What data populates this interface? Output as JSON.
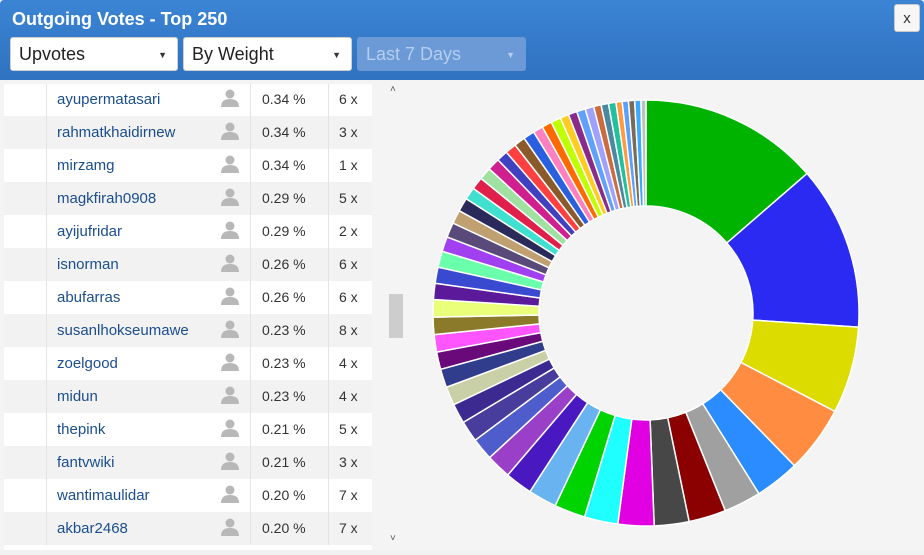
{
  "window": {
    "title": "Outgoing Votes - Top 250",
    "close_label": "x"
  },
  "filters": {
    "vote_type": {
      "value": "Upvotes",
      "arrow": "▼"
    },
    "sort": {
      "value": "By Weight",
      "arrow": "▼"
    },
    "period": {
      "value": "Last 7 Days",
      "arrow": "▼",
      "disabled": true
    }
  },
  "rows": [
    {
      "name": "ayupermatasari",
      "pct": "0.34 %",
      "count": "6 x"
    },
    {
      "name": "rahmatkhaidirnew",
      "pct": "0.34 %",
      "count": "3 x"
    },
    {
      "name": "mirzamg",
      "pct": "0.34 %",
      "count": "1 x"
    },
    {
      "name": "magkfirah0908",
      "pct": "0.29 %",
      "count": "5 x"
    },
    {
      "name": "ayijufridar",
      "pct": "0.29 %",
      "count": "2 x"
    },
    {
      "name": "isnorman",
      "pct": "0.26 %",
      "count": "6 x"
    },
    {
      "name": "abufarras",
      "pct": "0.26 %",
      "count": "6 x"
    },
    {
      "name": "susanlhokseumawe",
      "pct": "0.23 %",
      "count": "8 x"
    },
    {
      "name": "zoelgood",
      "pct": "0.23 %",
      "count": "4 x"
    },
    {
      "name": "midun",
      "pct": "0.23 %",
      "count": "4 x"
    },
    {
      "name": "thepink",
      "pct": "0.21 %",
      "count": "5 x"
    },
    {
      "name": "fantvwiki",
      "pct": "0.21 %",
      "count": "3 x"
    },
    {
      "name": "wantimaulidar",
      "pct": "0.20 %",
      "count": "7 x"
    },
    {
      "name": "akbar2468",
      "pct": "0.20 %",
      "count": "7 x"
    }
  ],
  "scrollbar": {
    "up_arrow": "˄",
    "down_arrow": "˅"
  },
  "icons": {
    "user": "user-icon",
    "dropdown": "chevron-down-icon",
    "close": "close-icon"
  },
  "colors": {
    "title_bar": "#3479c9",
    "link": "#1b4e8e"
  },
  "chart_data": {
    "type": "pie",
    "style": "donut",
    "series": [
      {
        "color": "#00b300",
        "value": 14.5
      },
      {
        "color": "#2a2af2",
        "value": 13.2
      },
      {
        "color": "#dcdc00",
        "value": 7.0
      },
      {
        "color": "#ff8c40",
        "value": 5.4
      },
      {
        "color": "#2a8cff",
        "value": 3.6
      },
      {
        "color": "#a0a0a0",
        "value": 3.0
      },
      {
        "color": "#8b0000",
        "value": 3.0
      },
      {
        "color": "#474747",
        "value": 2.8
      },
      {
        "color": "#e100e1",
        "value": 2.9
      },
      {
        "color": "#1fffff",
        "value": 2.7
      },
      {
        "color": "#00d400",
        "value": 2.5
      },
      {
        "color": "#69b4f0",
        "value": 2.3
      },
      {
        "color": "#4a18c0",
        "value": 2.2
      },
      {
        "color": "#9a40c8",
        "value": 2.0
      },
      {
        "color": "#4e5ccc",
        "value": 1.8
      },
      {
        "color": "#483c9c",
        "value": 1.7
      },
      {
        "color": "#3c2a90",
        "value": 1.6
      },
      {
        "color": "#c9d0a8",
        "value": 1.5
      },
      {
        "color": "#303c8c",
        "value": 1.5
      },
      {
        "color": "#6a0a7a",
        "value": 1.4
      },
      {
        "color": "#ff55ff",
        "value": 1.4
      },
      {
        "color": "#8a7a2a",
        "value": 1.4
      },
      {
        "color": "#eaff7a",
        "value": 1.4
      },
      {
        "color": "#5a1a9a",
        "value": 1.3
      },
      {
        "color": "#3a4ad0",
        "value": 1.3
      },
      {
        "color": "#6affaa",
        "value": 1.3
      },
      {
        "color": "#a040f0",
        "value": 1.2
      },
      {
        "color": "#5a4a7a",
        "value": 1.2
      },
      {
        "color": "#c0a070",
        "value": 1.1
      },
      {
        "color": "#2a2a5a",
        "value": 1.1
      },
      {
        "color": "#40e0d0",
        "value": 1.0
      },
      {
        "color": "#e0204a",
        "value": 1.0
      },
      {
        "color": "#a0e0a0",
        "value": 1.0
      },
      {
        "color": "#d02090",
        "value": 1.0
      },
      {
        "color": "#4040c0",
        "value": 0.9
      },
      {
        "color": "#ff4040",
        "value": 0.9
      },
      {
        "color": "#8a5a2a",
        "value": 0.9
      },
      {
        "color": "#2a60e0",
        "value": 0.9
      },
      {
        "color": "#ff80c0",
        "value": 0.8
      },
      {
        "color": "#ff6a00",
        "value": 0.8
      },
      {
        "color": "#c0ff00",
        "value": 0.8
      },
      {
        "color": "#ffcc20",
        "value": 0.7
      },
      {
        "color": "#8a2a8a",
        "value": 0.7
      },
      {
        "color": "#60a0ff",
        "value": 0.7
      },
      {
        "color": "#a0a0ff",
        "value": 0.7
      },
      {
        "color": "#cc6a40",
        "value": 0.6
      },
      {
        "color": "#4a8aa0",
        "value": 0.6
      },
      {
        "color": "#20c0a0",
        "value": 0.6
      },
      {
        "color": "#ff9a40",
        "value": 0.5
      },
      {
        "color": "#5aa0ff",
        "value": 0.5
      },
      {
        "color": "#7a6a5a",
        "value": 0.5
      },
      {
        "color": "#3aaaff",
        "value": 0.5
      },
      {
        "color": "#c0c0c0",
        "value": 0.4
      }
    ]
  }
}
